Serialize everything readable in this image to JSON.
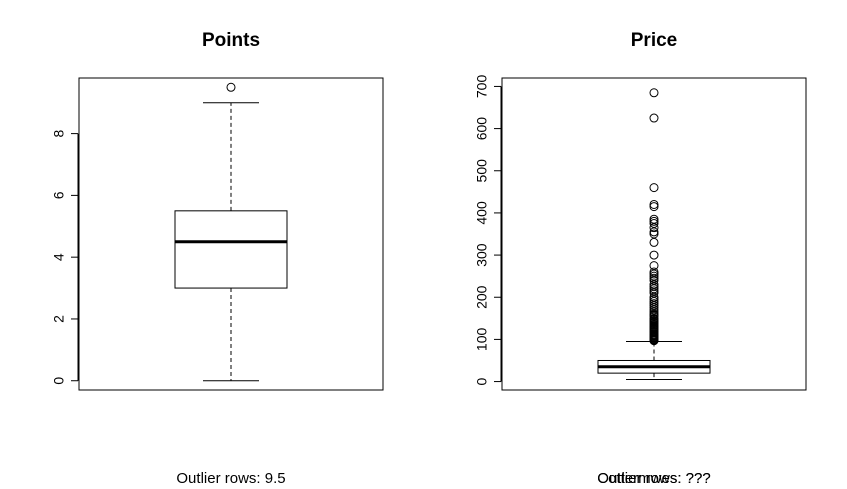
{
  "chart_data": [
    {
      "type": "boxplot",
      "title": "Points",
      "ylim": [
        -0.3,
        9.8
      ],
      "yticks": [
        "0",
        "2",
        "4",
        "6",
        "8"
      ],
      "stats": {
        "min": 0,
        "q1": 3,
        "median": 4.5,
        "q3": 5.5,
        "max": 9
      },
      "outliers": [
        9.5
      ],
      "subtitle": "Outlier rows:  9.5"
    },
    {
      "type": "boxplot",
      "title": "Price",
      "ylim": [
        -20,
        720
      ],
      "yticks": [
        "0",
        "100",
        "200",
        "300",
        "400",
        "500",
        "600",
        "700"
      ],
      "stats": {
        "min": 5,
        "q1": 20,
        "median": 35,
        "q3": 50,
        "max": 95
      },
      "outliers": [
        97,
        99,
        100,
        102,
        104,
        106,
        108,
        110,
        112,
        115,
        118,
        120,
        123,
        125,
        128,
        130,
        133,
        135,
        138,
        140,
        143,
        145,
        148,
        150,
        155,
        158,
        160,
        165,
        170,
        175,
        180,
        185,
        190,
        195,
        200,
        210,
        215,
        220,
        225,
        230,
        240,
        245,
        250,
        255,
        260,
        275,
        300,
        330,
        350,
        355,
        365,
        375,
        380,
        385,
        415,
        420,
        460,
        625,
        685
      ],
      "subtitle_overlap": [
        "Outlier rows:  ???",
        "Cottermwes: ???"
      ]
    }
  ]
}
